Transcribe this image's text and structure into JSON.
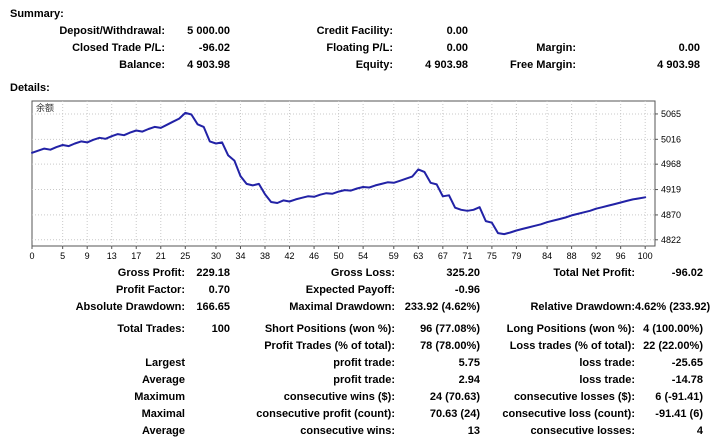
{
  "summary": {
    "title": "Summary:",
    "rows": [
      [
        "Deposit/Withdrawal:",
        "5 000.00",
        "Credit Facility:",
        "0.00",
        "",
        ""
      ],
      [
        "Closed Trade P/L:",
        "-96.02",
        "Floating P/L:",
        "0.00",
        "Margin:",
        "0.00"
      ],
      [
        "Balance:",
        "4 903.98",
        "Equity:",
        "4 903.98",
        "Free Margin:",
        "4 903.98"
      ]
    ]
  },
  "details": {
    "title": "Details:",
    "gap_rows": [
      3
    ],
    "rows": [
      [
        "Gross Profit:",
        "229.18",
        "Gross Loss:",
        "325.20",
        "Total Net Profit:",
        "-96.02"
      ],
      [
        "Profit Factor:",
        "0.70",
        "Expected Payoff:",
        "-0.96",
        "",
        ""
      ],
      [
        "Absolute Drawdown:",
        "166.65",
        "Maximal Drawdown:",
        "233.92 (4.62%)",
        "Relative Drawdown:",
        "4.62% (233.92)"
      ],
      [
        "Total Trades:",
        "100",
        "Short Positions (won %):",
        "96 (77.08%)",
        "Long Positions (won %):",
        "4 (100.00%)"
      ],
      [
        "",
        "",
        "Profit Trades (% of total):",
        "78 (78.00%)",
        "Loss trades (% of total):",
        "22 (22.00%)"
      ],
      [
        "Largest",
        "",
        "profit trade:",
        "5.75",
        "loss trade:",
        "-25.65"
      ],
      [
        "Average",
        "",
        "profit trade:",
        "2.94",
        "loss trade:",
        "-14.78"
      ],
      [
        "Maximum",
        "",
        "consecutive wins ($):",
        "24 (70.63)",
        "consecutive losses ($):",
        "6 (-91.41)"
      ],
      [
        "Maximal",
        "",
        "consecutive profit (count):",
        "70.63 (24)",
        "consecutive loss (count):",
        "-91.41 (6)"
      ],
      [
        "Average",
        "",
        "consecutive wins:",
        "13",
        "consecutive losses:",
        "4"
      ]
    ]
  },
  "chart_data": {
    "type": "line",
    "title": "",
    "legend": "余额",
    "xlabel": "",
    "ylabel": "",
    "line_color": "#2222a6",
    "grid_color": "#c9c9c9",
    "border_color": "#555555",
    "grid": "dotted",
    "legend_position": "top-left-inside",
    "x_ticks": [
      0,
      5,
      9,
      13,
      17,
      21,
      25,
      30,
      34,
      38,
      42,
      46,
      50,
      54,
      59,
      63,
      67,
      71,
      75,
      79,
      84,
      88,
      92,
      96,
      100
    ],
    "y_ticks": [
      5065,
      5016,
      4968,
      4919,
      4870,
      4822
    ],
    "xlim": [
      0,
      101.6
    ],
    "ylim": [
      4810,
      5090
    ],
    "x_is_trade_index": true,
    "values": [
      4990,
      4994,
      4998,
      4996,
      5001,
      5005,
      5003,
      5008,
      5012,
      5010,
      5015,
      5019,
      5017,
      5022,
      5026,
      5024,
      5029,
      5033,
      5031,
      5036,
      5040,
      5038,
      5044,
      5050,
      5056,
      5067,
      5064,
      5045,
      5040,
      5012,
      5008,
      5010,
      4985,
      4975,
      4945,
      4930,
      4927,
      4930,
      4910,
      4895,
      4893,
      4898,
      4896,
      4900,
      4903,
      4906,
      4905,
      4909,
      4912,
      4911,
      4915,
      4918,
      4917,
      4921,
      4924,
      4923,
      4927,
      4930,
      4933,
      4932,
      4936,
      4940,
      4944,
      4958,
      4953,
      4932,
      4929,
      4906,
      4908,
      4884,
      4880,
      4878,
      4880,
      4885,
      4858,
      4855,
      4835,
      4833,
      4836,
      4840,
      4843,
      4846,
      4849,
      4852,
      4856,
      4859,
      4862,
      4865,
      4869,
      4872,
      4875,
      4878,
      4882,
      4885,
      4888,
      4891,
      4894,
      4897,
      4900,
      4902,
      4904
    ]
  }
}
